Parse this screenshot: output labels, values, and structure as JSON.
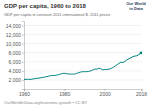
{
  "chart_data": {
    "type": "line",
    "title": "GDP per capita, 1960 to 2018",
    "subtitle": "GDP per capita in constant 2011 international $, 2011 prices",
    "annotations": [
      "Our World",
      "in Data",
      "OurWorldInData.org/economic-growth  •  CC BY"
    ],
    "x": [
      1960,
      1961,
      1962,
      1963,
      1964,
      1965,
      1966,
      1967,
      1968,
      1969,
      1970,
      1971,
      1972,
      1973,
      1974,
      1975,
      1976,
      1977,
      1978,
      1979,
      1980,
      1981,
      1982,
      1983,
      1984,
      1985,
      1986,
      1987,
      1988,
      1989,
      1990,
      1991,
      1992,
      1993,
      1994,
      1995,
      1996,
      1997,
      1998,
      1999,
      2000,
      2001,
      2002,
      2003,
      2004,
      2005,
      2006,
      2007,
      2008,
      2009,
      2010,
      2011,
      2012,
      2013,
      2014,
      2015,
      2016,
      2017,
      2018
    ],
    "values": [
      2100,
      2130,
      2180,
      2100,
      2180,
      2250,
      2350,
      2370,
      2460,
      2530,
      2620,
      2680,
      2800,
      2920,
      3000,
      2980,
      3060,
      3150,
      3280,
      3400,
      3480,
      3380,
      3340,
      3280,
      3310,
      3270,
      3430,
      3590,
      3730,
      3810,
      3830,
      3820,
      3870,
      3980,
      4170,
      4380,
      4370,
      4560,
      4490,
      4220,
      4310,
      4310,
      4370,
      4490,
      4720,
      4990,
      5310,
      5630,
      5880,
      5850,
      6090,
      6420,
      6680,
      6890,
      7160,
      7260,
      7340,
      7610,
      7950
    ],
    "color": "#00847e",
    "xlim": [
      1960,
      2018.5
    ],
    "xticks": [
      1960,
      1980,
      2000,
      2018
    ],
    "ylim": [
      0,
      15000
    ],
    "yticks": [
      {
        "value": 2000,
        "label": "2,000"
      },
      {
        "value": 4000,
        "label": "4,000"
      },
      {
        "value": 6000,
        "label": "6,000"
      },
      {
        "value": 8000,
        "label": "8,000"
      },
      {
        "value": 10000,
        "label": "10,000"
      },
      {
        "value": 12000,
        "label": "12,000"
      },
      {
        "value": 14000,
        "label": "14,000"
      }
    ],
    "grid": true
  }
}
